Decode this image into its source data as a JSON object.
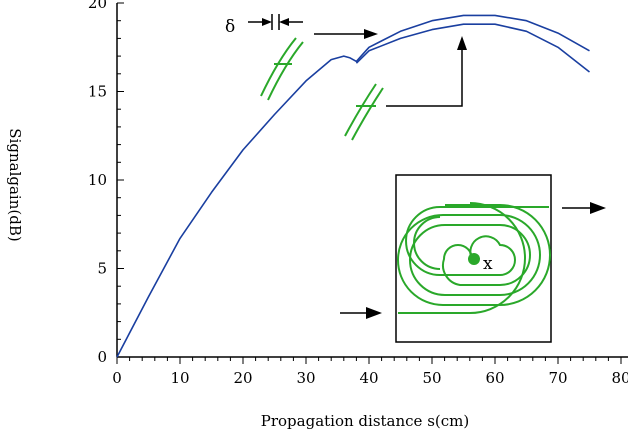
{
  "chart_data": {
    "type": "line",
    "xlabel": "Propagation distance s(cm)",
    "ylabel": "Signalgain(dB)",
    "xlim": [
      0,
      80
    ],
    "ylim": [
      0,
      20
    ],
    "x_ticks": [
      "0",
      "10",
      "20",
      "30",
      "40",
      "50",
      "60",
      "70",
      "80"
    ],
    "y_ticks": [
      "0",
      "5",
      "10",
      "15",
      "20"
    ],
    "grid": false,
    "line_color": "#1a3fa0",
    "series": [
      {
        "x": [
          0,
          5,
          10,
          15,
          20,
          25,
          30,
          34,
          36,
          37,
          38,
          39,
          40,
          45,
          50,
          55,
          60,
          65,
          70,
          75
        ],
        "y": [
          0,
          3.4,
          6.7,
          9.3,
          11.7,
          13.7,
          15.6,
          16.8,
          17.0,
          16.9,
          16.7,
          17.1,
          17.5,
          18.4,
          19.0,
          19.3,
          19.3,
          19.0,
          18.3,
          17.3
        ]
      },
      {
        "x": [
          38,
          40,
          45,
          50,
          55,
          60,
          65,
          70,
          75
        ],
        "y": [
          16.6,
          17.3,
          18.0,
          18.5,
          18.8,
          18.8,
          18.4,
          17.5,
          16.1
        ]
      }
    ],
    "annotations": {
      "delta_symbol": "δ",
      "center_label": "x",
      "color": "#2aa82a"
    }
  }
}
